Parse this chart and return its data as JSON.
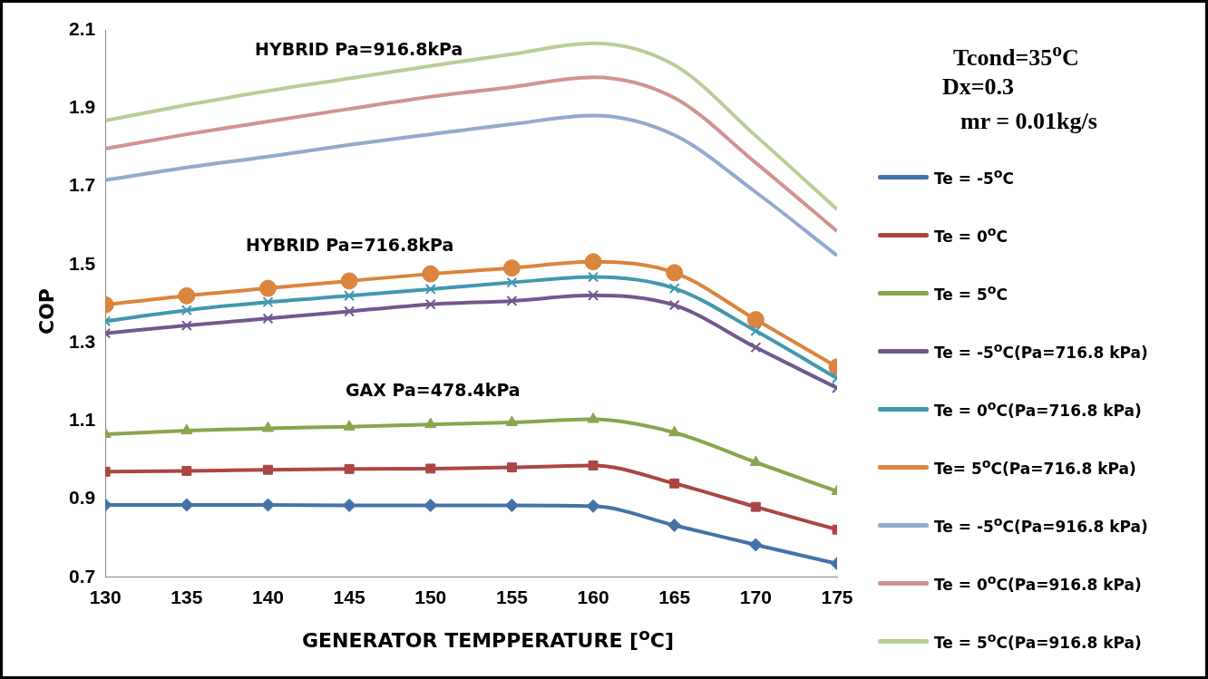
{
  "chart_data": {
    "type": "line",
    "xlabel": "GENERATOR TEMPPERATURE [$^{o}$C]",
    "ylabel": "COP",
    "x": [
      130,
      135,
      140,
      145,
      150,
      155,
      160,
      165,
      170,
      175
    ],
    "xlim": [
      130,
      175
    ],
    "xticks": [
      130,
      135,
      140,
      145,
      150,
      155,
      160,
      165,
      170,
      175
    ],
    "ylim": [
      0.7,
      2.1
    ],
    "yticks": [
      0.7,
      0.9,
      1.1,
      1.3,
      1.5,
      1.7,
      1.9,
      2.1
    ],
    "grid": false,
    "legend": "right",
    "line_style": "solid",
    "annotations": [
      "HYBRID Pa=916.8kPa",
      "HYBRID Pa=716.8kPa",
      "GAX Pa=478.4kPa",
      "Tcond=35$^{o}$C",
      "Dx=0.3",
      "mr = 0.01kg/s"
    ],
    "series": [
      {
        "name": "Te = -5$^{o}$C",
        "color": "#4472a8",
        "marker": "diamond",
        "values": [
          0.885,
          0.885,
          0.885,
          0.884,
          0.884,
          0.884,
          0.882,
          0.833,
          0.783,
          0.735
        ]
      },
      {
        "name": "Te = 0$^{o}$C",
        "color": "#aa4643",
        "marker": "square",
        "values": [
          0.97,
          0.972,
          0.975,
          0.977,
          0.978,
          0.981,
          0.986,
          0.94,
          0.88,
          0.822
        ]
      },
      {
        "name": "Te = 5$^{o}$C",
        "color": "#89a54e",
        "marker": "triangle",
        "values": [
          1.066,
          1.075,
          1.081,
          1.085,
          1.091,
          1.096,
          1.104,
          1.07,
          0.994,
          0.92
        ]
      },
      {
        "name": "Te = -5$^{o}$C(Pa=716.8 kPa)",
        "color": "#71588f",
        "marker": "cross",
        "values": [
          1.324,
          1.344,
          1.362,
          1.38,
          1.398,
          1.407,
          1.421,
          1.396,
          1.288,
          1.184
        ]
      },
      {
        "name": "Te = 0$^{o}$C(Pa=716.8 kPa)",
        "color": "#4198af",
        "marker": "cross",
        "values": [
          1.355,
          1.383,
          1.404,
          1.42,
          1.437,
          1.454,
          1.468,
          1.439,
          1.33,
          1.209
        ]
      },
      {
        "name": "Te= 5$^{o}$C(Pa=716.8 kPa)",
        "color": "#db843d",
        "marker": "circle",
        "values": [
          1.397,
          1.42,
          1.439,
          1.458,
          1.476,
          1.491,
          1.507,
          1.479,
          1.359,
          1.238
        ]
      },
      {
        "name": "Te = -5$^{o}$C(Pa=916.8 kPa)",
        "color": "#93a9cf",
        "marker": "none",
        "values": [
          1.716,
          1.748,
          1.776,
          1.806,
          1.833,
          1.859,
          1.881,
          1.831,
          1.685,
          1.523
        ]
      },
      {
        "name": "Te = 0$^{o}$C(Pa=916.8 kPa)",
        "color": "#d19392",
        "marker": "none",
        "values": [
          1.796,
          1.833,
          1.866,
          1.898,
          1.929,
          1.954,
          1.979,
          1.926,
          1.76,
          1.585
        ]
      },
      {
        "name": "Te = 5$^{o}$C(Pa=916.8 kPa)",
        "color": "#b9cd96",
        "marker": "none",
        "values": [
          1.868,
          1.908,
          1.944,
          1.976,
          2.008,
          2.038,
          2.066,
          2.01,
          1.829,
          1.641
        ]
      }
    ]
  }
}
